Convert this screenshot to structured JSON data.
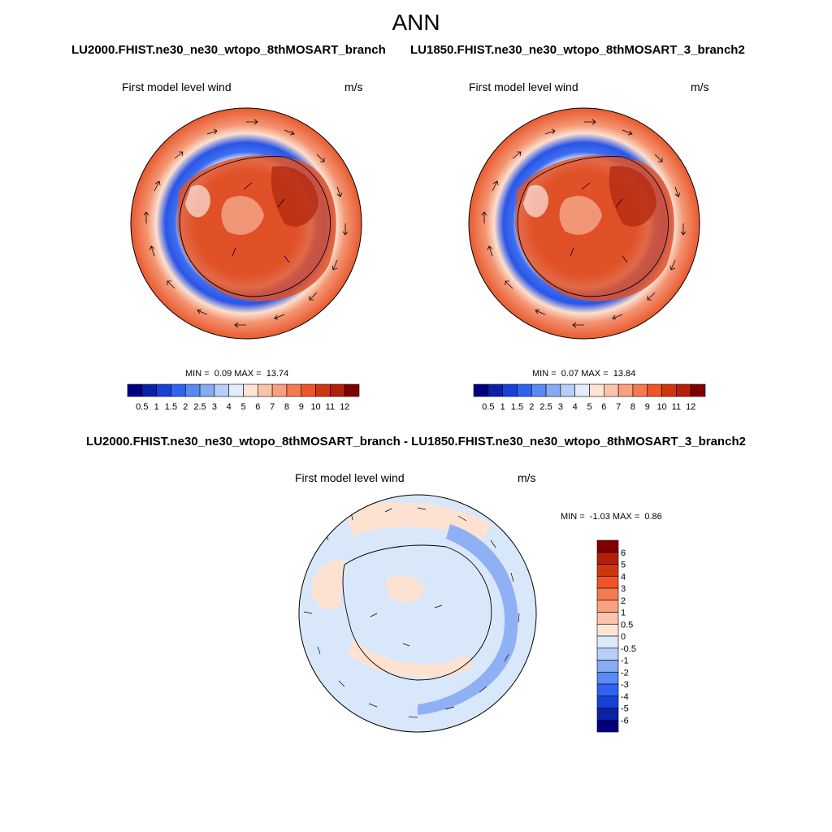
{
  "title": "ANN",
  "top_left": {
    "case": "LU2000.FHIST.ne30_ne30_wtopo_8thMOSART_branch",
    "field_label": "First model level wind",
    "units": "m/s",
    "min_label": "MIN =",
    "min_value": "0.09",
    "max_label": "MAX =",
    "max_value": "13.74"
  },
  "top_right": {
    "case": "LU1850.FHIST.ne30_ne30_wtopo_8thMOSART_3_branch2",
    "field_label": "First model level wind",
    "units": "m/s",
    "min_label": "MIN =",
    "min_value": "0.07",
    "max_label": "MAX =",
    "max_value": "13.84"
  },
  "difference": {
    "case": "LU2000.FHIST.ne30_ne30_wtopo_8thMOSART_branch - LU1850.FHIST.ne30_ne30_wtopo_8thMOSART_3_branch2",
    "field_label": "First model level wind",
    "units": "m/s",
    "min_label": "MIN =",
    "min_value": "-1.03",
    "max_label": "MAX =",
    "max_value": "0.86"
  },
  "colorbar_main": {
    "labels": [
      "0.5",
      "1",
      "1.5",
      "2",
      "2.5",
      "3",
      "4",
      "5",
      "6",
      "7",
      "8",
      "9",
      "10",
      "11",
      "12"
    ],
    "colors": [
      "#00007f",
      "#0a22a8",
      "#1742d8",
      "#2f63f2",
      "#5a8af4",
      "#88abf5",
      "#b8cdf8",
      "#e1ecfc",
      "#fde5d5",
      "#fbc4aa",
      "#f9a07c",
      "#f67a50",
      "#ef5528",
      "#d03710",
      "#b31f08",
      "#7f0000"
    ]
  },
  "colorbar_diff": {
    "labels": [
      "6",
      "5",
      "4",
      "3",
      "2",
      "1",
      "0.5",
      "0",
      "-0.5",
      "-1",
      "-2",
      "-3",
      "-4",
      "-5",
      "-6"
    ],
    "colors": [
      "#7f0000",
      "#b31f08",
      "#d03710",
      "#ef5528",
      "#f67a50",
      "#f9a07c",
      "#fbc4aa",
      "#fde5d5",
      "#dce9fb",
      "#b8cdf8",
      "#88abf5",
      "#5a8af4",
      "#2f63f2",
      "#1742d8",
      "#0a22a8",
      "#00007f"
    ]
  }
}
